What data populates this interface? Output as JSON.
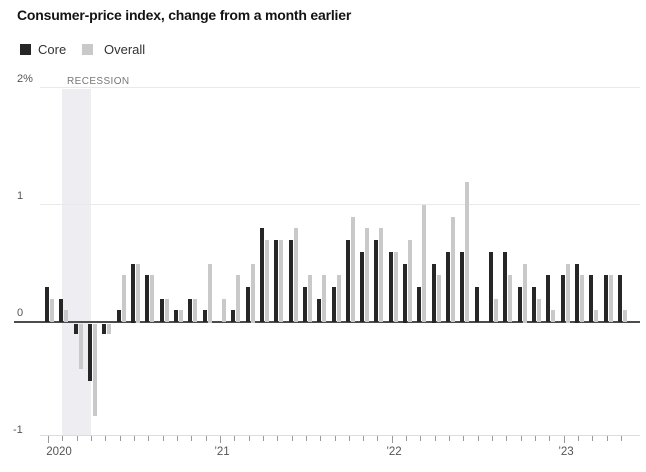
{
  "header": {
    "title": "Consumer-price index, change from a month earlier"
  },
  "legend": [
    {
      "label": "Core",
      "color": "#262626"
    },
    {
      "label": "Overall",
      "color": "#c9c9c9"
    }
  ],
  "colors": {
    "core_bar": "#262626",
    "overall_bar": "#c9c9c9",
    "recession_band": "#ededf2",
    "zero_line": "#4c4c4c",
    "gridline": "#e9e9e9"
  },
  "chart_data": {
    "type": "bar",
    "title": "Consumer-price index, change from a month earlier",
    "xlabel": "",
    "ylabel": "",
    "ylim": [
      -1,
      2
    ],
    "grid": "horizontal",
    "legend_position": "top-left",
    "categories": [
      "Jan 2020",
      "Feb 2020",
      "Mar 2020",
      "Apr 2020",
      "May 2020",
      "Jun 2020",
      "Jul 2020",
      "Aug 2020",
      "Sep 2020",
      "Oct 2020",
      "Nov 2020",
      "Dec 2020",
      "Jan 2021",
      "Feb 2021",
      "Mar 2021",
      "Apr 2021",
      "May 2021",
      "Jun 2021",
      "Jul 2021",
      "Aug 2021",
      "Sep 2021",
      "Oct 2021",
      "Nov 2021",
      "Dec 2021",
      "Jan 2022",
      "Feb 2022",
      "Mar 2022",
      "Apr 2022",
      "May 2022",
      "Jun 2022",
      "Jul 2022",
      "Aug 2022",
      "Sep 2022",
      "Oct 2022",
      "Nov 2022",
      "Dec 2022",
      "Jan 2023",
      "Feb 2023",
      "Mar 2023",
      "Apr 2023",
      "May 2023"
    ],
    "series": [
      {
        "name": "Core",
        "color": "#262626",
        "values": [
          0.3,
          0.2,
          -0.1,
          -0.5,
          -0.1,
          0.1,
          0.5,
          0.4,
          0.2,
          0.1,
          0.2,
          0.1,
          0.0,
          0.1,
          0.3,
          0.8,
          0.7,
          0.7,
          0.3,
          0.2,
          0.3,
          0.7,
          0.6,
          0.7,
          0.6,
          0.5,
          0.3,
          0.5,
          0.6,
          0.6,
          0.3,
          0.6,
          0.6,
          0.3,
          0.3,
          0.4,
          0.4,
          0.5,
          0.4,
          0.4,
          0.4
        ]
      },
      {
        "name": "Overall",
        "color": "#c9c9c9",
        "values": [
          0.2,
          0.1,
          -0.4,
          -0.8,
          -0.1,
          0.4,
          0.5,
          0.4,
          0.2,
          0.1,
          0.2,
          0.5,
          0.2,
          0.4,
          0.5,
          0.7,
          0.7,
          0.8,
          0.4,
          0.4,
          0.4,
          0.9,
          0.8,
          0.8,
          0.6,
          0.7,
          1.0,
          0.4,
          0.9,
          1.2,
          0.0,
          0.2,
          0.4,
          0.5,
          0.2,
          0.1,
          0.5,
          0.4,
          0.1,
          0.4,
          0.1
        ]
      }
    ],
    "yticks": [
      {
        "value": 2,
        "label": "2%"
      },
      {
        "value": 1,
        "label": "1"
      },
      {
        "value": 0,
        "label": "0"
      },
      {
        "value": -1,
        "label": "-1"
      }
    ],
    "x_year_labels": [
      {
        "label": "2020",
        "month_index": 0
      },
      {
        "label": "’21",
        "month_index": 12
      },
      {
        "label": "’22",
        "month_index": 24
      },
      {
        "label": "’23",
        "month_index": 36
      }
    ],
    "recession_band": {
      "start_month_index": 1,
      "end_month_index": 3,
      "label": "RECESSION"
    }
  }
}
